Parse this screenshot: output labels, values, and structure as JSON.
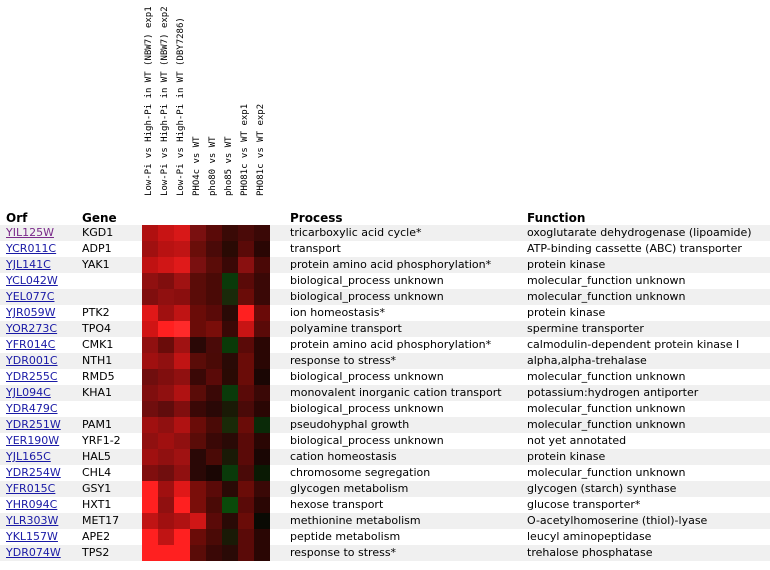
{
  "headers": {
    "orf": "Orf",
    "gene": "Gene",
    "process": "Process",
    "function": "Function"
  },
  "experiments": [
    "Low-Pi vs High-Pi in WT (NBW7) exp1",
    "Low-Pi vs High-Pi in WT (NBW7) exp2",
    "Low-Pi vs High-Pi in WT (DBY7286)",
    "PHO4c vs WT",
    "pho80 vs WT",
    "pho85 vs WT",
    "PHO81c vs WT exp1",
    "PHO81c vs WT exp2"
  ],
  "rows": [
    {
      "orf": "YIL125W",
      "gene": "KGD1",
      "process": "tricarboxylic acid cycle*",
      "function": "oxoglutarate dehydrogenase (lipoamide)",
      "visited": true,
      "cells": [
        "#b01010",
        "#c81414",
        "#d81818",
        "#7a1010",
        "#5a0a08",
        "#3a0a06",
        "#4a0a08",
        "#3a0806"
      ]
    },
    {
      "orf": "YCR011C",
      "gene": "ADP1",
      "process": "transport",
      "function": "ATP-binding cassette (ABC) transporter",
      "cells": [
        "#a01010",
        "#b81212",
        "#c01414",
        "#6a0e0a",
        "#4a0a08",
        "#2a0a04",
        "#5a0a08",
        "#2a0604"
      ]
    },
    {
      "orf": "YJL141C",
      "gene": "YAK1",
      "process": "protein amino acid phosphorylation*",
      "function": "protein kinase",
      "cells": [
        "#c01212",
        "#d01616",
        "#e01a1a",
        "#7a1010",
        "#5a0c08",
        "#3a0806",
        "#8a1010",
        "#4a0806"
      ]
    },
    {
      "orf": "YCL042W",
      "gene": "",
      "process": "biological_process unknown",
      "function": "molecular_function unknown",
      "cells": [
        "#901010",
        "#800e0e",
        "#a01212",
        "#5a0c08",
        "#4a0a06",
        "#0a3a0a",
        "#5a0a08",
        "#3a0806"
      ]
    },
    {
      "orf": "YEL077C",
      "gene": "",
      "process": "biological_process unknown",
      "function": "molecular_function unknown",
      "cells": [
        "#800e0e",
        "#901010",
        "#8a0e0e",
        "#5a0c08",
        "#4a0a06",
        "#1a2a0a",
        "#6a0c08",
        "#3a0806"
      ]
    },
    {
      "orf": "YJR059W",
      "gene": "PTK2",
      "process": "ion homeostasis*",
      "function": "protein kinase",
      "cells": [
        "#e01818",
        "#a01010",
        "#c01414",
        "#6a0c08",
        "#5a0a08",
        "#2a0a06",
        "#ff2020",
        "#6a0a08"
      ]
    },
    {
      "orf": "YOR273C",
      "gene": "TPO4",
      "process": "polyamine transport",
      "function": "spermine transporter",
      "cells": [
        "#d01414",
        "#ff2020",
        "#ff2a2a",
        "#6a0c08",
        "#7a0e0a",
        "#3a0806",
        "#c81414",
        "#5a0a08"
      ]
    },
    {
      "orf": "YFR014C",
      "gene": "CMK1",
      "process": "protein amino acid phosphorylation*",
      "function": "calmodulin-dependent protein kinase I",
      "cells": [
        "#901010",
        "#6a0c0a",
        "#a01212",
        "#2a0806",
        "#4a0a08",
        "#0a3a08",
        "#5a0a08",
        "#2a0604"
      ]
    },
    {
      "orf": "YDR001C",
      "gene": "NTH1",
      "process": "response to stress*",
      "function": "alpha,alpha-trehalase",
      "cells": [
        "#a01010",
        "#901010",
        "#c01414",
        "#5a0c08",
        "#4a0a06",
        "#2a0a06",
        "#6a0c08",
        "#2a0604"
      ]
    },
    {
      "orf": "YDR255C",
      "gene": "RMD5",
      "process": "biological_process unknown",
      "function": "molecular_function unknown",
      "cells": [
        "#700e0e",
        "#800e0e",
        "#901010",
        "#3a0806",
        "#5a0a08",
        "#2a0a04",
        "#6a0c08",
        "#1a0604"
      ]
    },
    {
      "orf": "YJL094C",
      "gene": "KHA1",
      "process": "monovalent inorganic cation transport",
      "function": "potassium:hydrogen antiporter",
      "cells": [
        "#800e0e",
        "#901010",
        "#b01212",
        "#5a0c08",
        "#3a0806",
        "#0a3a0a",
        "#5a0a08",
        "#3a0806"
      ]
    },
    {
      "orf": "YDR479C",
      "gene": "",
      "process": "biological_process unknown",
      "function": "molecular_function unknown",
      "cells": [
        "#700e0e",
        "#600c0c",
        "#800e0e",
        "#3a0806",
        "#2a0806",
        "#1a1a06",
        "#4a0a08",
        "#2a0604"
      ]
    },
    {
      "orf": "YDR251W",
      "gene": "PAM1",
      "process": "pseudohyphal growth",
      "function": "molecular_function unknown",
      "cells": [
        "#a01010",
        "#901010",
        "#b01212",
        "#6a0c08",
        "#4a0a06",
        "#1a2a08",
        "#6a0c08",
        "#0a2a08"
      ]
    },
    {
      "orf": "YER190W",
      "gene": "YRF1-2",
      "process": "biological_process unknown",
      "function": "not yet annotated",
      "cells": [
        "#901010",
        "#a01010",
        "#901010",
        "#5a0c08",
        "#3a0806",
        "#2a0a06",
        "#5a0a08",
        "#2a0604"
      ]
    },
    {
      "orf": "YJL165C",
      "gene": "HAL5",
      "process": "cation homeostasis",
      "function": "protein kinase",
      "cells": [
        "#a01010",
        "#901010",
        "#a01212",
        "#2a0806",
        "#4a0a06",
        "#1a1a06",
        "#5a0a08",
        "#1a0604"
      ]
    },
    {
      "orf": "YDR254W",
      "gene": "CHL4",
      "process": "chromosome segregation",
      "function": "molecular_function unknown",
      "cells": [
        "#800e0e",
        "#700e0e",
        "#901010",
        "#2a0806",
        "#1a0604",
        "#0a3a0a",
        "#4a0a08",
        "#0a1a04"
      ]
    },
    {
      "orf": "YFR015C",
      "gene": "GSY1",
      "process": "glycogen metabolism",
      "function": "glycogen (starch) synthase",
      "cells": [
        "#ff2020",
        "#a01010",
        "#e01818",
        "#7a0e0a",
        "#5a0a08",
        "#2a0a06",
        "#6a0c08",
        "#3a0806"
      ]
    },
    {
      "orf": "YHR094C",
      "gene": "HXT1",
      "process": "hexose transport",
      "function": "glucose transporter*",
      "cells": [
        "#ff2020",
        "#901010",
        "#ff2020",
        "#7a0e0a",
        "#4a0a06",
        "#0a4a0a",
        "#5a0a08",
        "#2a0604"
      ]
    },
    {
      "orf": "YLR303W",
      "gene": "MET17",
      "process": "methionine metabolism",
      "function": "O-acetylhomoserine (thiol)-lyase",
      "cells": [
        "#c01414",
        "#a01010",
        "#b01212",
        "#d01616",
        "#5a0a08",
        "#2a0a06",
        "#6a0c08",
        "#0a0a04"
      ]
    },
    {
      "orf": "YKL157W",
      "gene": "APE2",
      "process": "peptide metabolism",
      "function": "leucyl aminopeptidase",
      "cells": [
        "#ff2020",
        "#c01414",
        "#ff2020",
        "#6a0c08",
        "#4a0a06",
        "#1a1a06",
        "#5a0a08",
        "#2a0604"
      ]
    },
    {
      "orf": "YDR074W",
      "gene": "TPS2",
      "process": "response to stress*",
      "function": "trehalose phosphatase",
      "cells": [
        "#ff2020",
        "#ff2020",
        "#ff2020",
        "#5a0c08",
        "#3a0806",
        "#2a0a06",
        "#5a0a08",
        "#2a0604"
      ]
    }
  ]
}
